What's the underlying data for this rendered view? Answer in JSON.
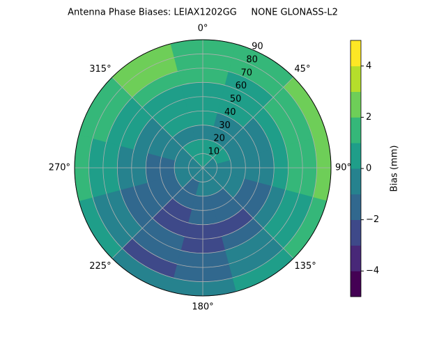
{
  "chart_data": {
    "type": "polar-contour",
    "title": "Antenna Phase Biases: LEIAX1202GG     NONE GLONASS-L2",
    "azimuth": [
      0,
      30,
      60,
      90,
      120,
      150,
      180,
      210,
      240,
      270,
      300,
      330
    ],
    "r_edges": [
      0,
      10,
      20,
      30,
      40,
      50,
      60,
      70,
      80,
      90
    ],
    "z": [
      [
        0.5,
        0.5,
        -0.5,
        0.5,
        0.5,
        0.5,
        1.5,
        1.5,
        1.5
      ],
      [
        0.5,
        0.5,
        -0.5,
        -0.5,
        0.5,
        0.5,
        0.5,
        1.5,
        1.5
      ],
      [
        -0.5,
        0.5,
        -0.5,
        -0.5,
        -0.5,
        0.5,
        1.5,
        1.5,
        2.5
      ],
      [
        -0.5,
        -0.5,
        -0.5,
        -0.5,
        -0.5,
        0.5,
        1.5,
        1.5,
        2.5
      ],
      [
        -0.5,
        -0.5,
        -0.5,
        -1.5,
        -1.5,
        -0.5,
        0.5,
        0.5,
        1.5
      ],
      [
        -0.5,
        -0.5,
        -1.5,
        -1.5,
        -2.5,
        -1.5,
        -0.5,
        -0.5,
        0.5
      ],
      [
        -0.5,
        -0.5,
        -1.5,
        -1.5,
        -2.5,
        -2.5,
        -1.5,
        -1.5,
        -0.5
      ],
      [
        -0.5,
        -1.5,
        -1.5,
        -2.5,
        -2.5,
        -1.5,
        -1.5,
        -2.5,
        -0.5
      ],
      [
        -0.5,
        -0.5,
        -1.5,
        -1.5,
        -1.5,
        -1.5,
        -0.5,
        -0.5,
        0.5
      ],
      [
        -0.5,
        -0.5,
        -1.5,
        -1.5,
        -0.5,
        -0.5,
        0.5,
        0.5,
        1.5
      ],
      [
        -0.5,
        -0.5,
        -0.5,
        -0.5,
        -0.5,
        0.5,
        0.5,
        1.5,
        1.5
      ],
      [
        0.5,
        0.5,
        -0.5,
        0.5,
        0.5,
        0.5,
        1.5,
        2.5,
        2.5
      ]
    ],
    "rlim": [
      0,
      90
    ],
    "rticks": [
      10,
      20,
      30,
      40,
      50,
      60,
      70,
      80,
      90
    ],
    "thetaticks": [
      {
        "value": 0,
        "label": "0°"
      },
      {
        "value": 45,
        "label": "45°"
      },
      {
        "value": 90,
        "label": "90°"
      },
      {
        "value": 135,
        "label": "135°"
      },
      {
        "value": 180,
        "label": "180°"
      },
      {
        "value": 225,
        "label": "225°"
      },
      {
        "value": 270,
        "label": "270°"
      },
      {
        "value": 315,
        "label": "315°"
      }
    ],
    "levels": [
      -5,
      -4,
      -3,
      -2,
      -1,
      0,
      1,
      2,
      3,
      4,
      5
    ],
    "colors": [
      "#440154",
      "#482878",
      "#3e4989",
      "#31688e",
      "#26828e",
      "#1f9e89",
      "#35b779",
      "#6ece58",
      "#b5de2b",
      "#fde725"
    ],
    "colorbar_label": "Bias (mm)",
    "colorbar_ticks": [
      {
        "value": -4,
        "label": "−4"
      },
      {
        "value": -2,
        "label": "−2"
      },
      0,
      2,
      4
    ],
    "grid": true
  }
}
